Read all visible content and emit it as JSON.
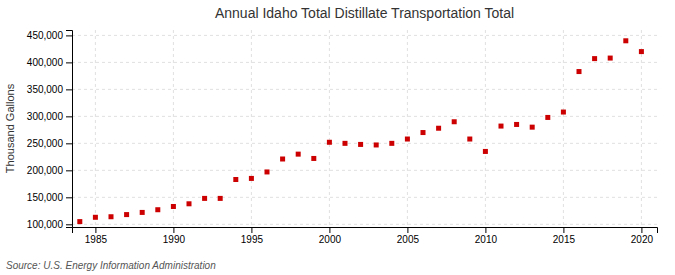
{
  "chart_data": {
    "type": "scatter",
    "title": "Annual Idaho Total Distillate Transportation Total",
    "ylabel": "Thousand Gallons",
    "source": "Source: U.S. Energy Information Administration",
    "x": [
      1984,
      1985,
      1986,
      1987,
      1988,
      1989,
      1990,
      1991,
      1992,
      1993,
      1994,
      1995,
      1996,
      1997,
      1998,
      1999,
      2000,
      2001,
      2002,
      2003,
      2004,
      2005,
      2006,
      2007,
      2008,
      2009,
      2010,
      2011,
      2012,
      2013,
      2014,
      2015,
      2016,
      2017,
      2018,
      2019,
      2020
    ],
    "values": [
      105000,
      113000,
      114000,
      118000,
      122000,
      127000,
      133000,
      138000,
      148000,
      148000,
      183000,
      185000,
      197000,
      221000,
      230000,
      222000,
      252000,
      250000,
      248000,
      247000,
      250000,
      258000,
      270000,
      278000,
      290000,
      258000,
      235000,
      282000,
      285000,
      280000,
      298000,
      308000,
      383000,
      407000,
      408000,
      440000,
      420000
    ],
    "color": "#cc0000",
    "marker": "square",
    "xlim": [
      1983.5,
      2021
    ],
    "ylim": [
      95000,
      460000
    ],
    "xticks": [
      1985,
      1990,
      1995,
      2000,
      2005,
      2010,
      2015,
      2020
    ],
    "yticks": [
      {
        "value": 100000,
        "label": "100,000"
      },
      {
        "value": 150000,
        "label": "150,000"
      },
      {
        "value": 200000,
        "label": "200,000"
      },
      {
        "value": 250000,
        "label": "250,000"
      },
      {
        "value": 300000,
        "label": "300,000"
      },
      {
        "value": 350000,
        "label": "350,000"
      },
      {
        "value": 400000,
        "label": "400,000"
      },
      {
        "value": 450000,
        "label": "450,000"
      }
    ],
    "grid": true
  }
}
